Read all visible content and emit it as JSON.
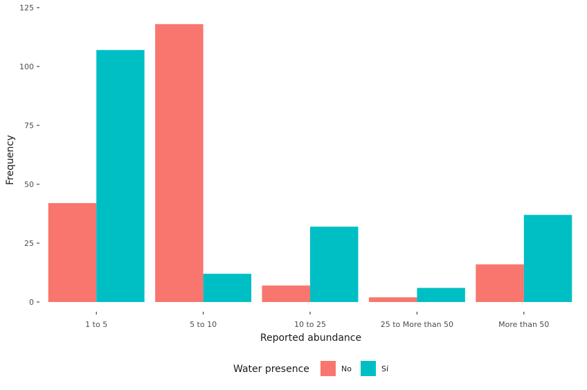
{
  "chart_data": {
    "type": "bar",
    "categories": [
      "1 to 5",
      "5 to 10",
      "10 to 25",
      "25 to More than 50",
      "More than 50"
    ],
    "series": [
      {
        "name": "No",
        "values": [
          42,
          118,
          7,
          2,
          16
        ],
        "color": "#F8766D"
      },
      {
        "name": "Sí",
        "values": [
          107,
          12,
          32,
          6,
          37
        ],
        "color": "#00BFC4"
      }
    ],
    "xlabel": "Reported abundance",
    "ylabel": "Frequency",
    "ylim": [
      0,
      125
    ],
    "yticks": [
      0,
      25,
      50,
      75,
      100,
      125
    ],
    "ytick_labels": [
      "0",
      "25",
      "50",
      "75",
      "100",
      "125"
    ],
    "grid": false,
    "legend": {
      "title": "Water presence",
      "position": "bottom"
    }
  }
}
